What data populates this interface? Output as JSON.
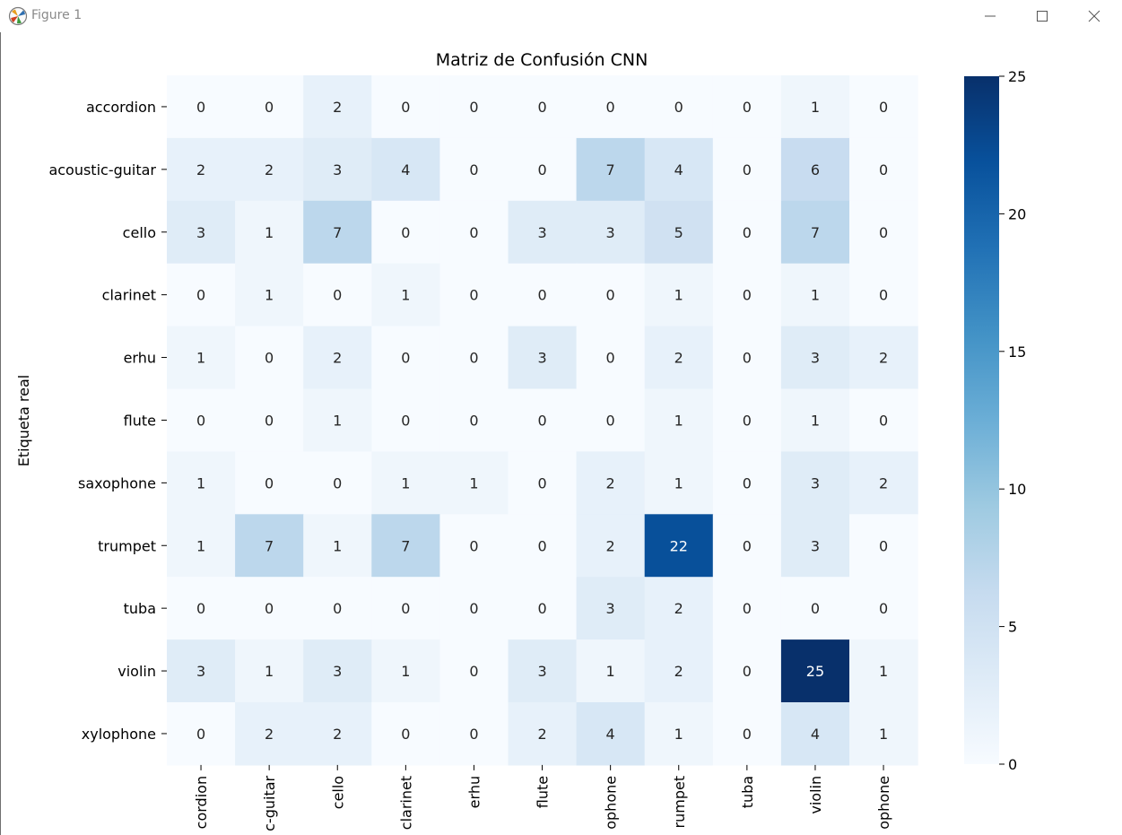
{
  "window": {
    "title": "Figure 1",
    "icon": "matplotlib-icon",
    "buttons": [
      "minimize-icon",
      "maximize-icon",
      "close-icon"
    ]
  },
  "chart_data": {
    "type": "heatmap",
    "title": "Matriz de Confusión CNN",
    "ylabel": "Etiqueta real",
    "xlabel": "",
    "row_labels": [
      "accordion",
      "acoustic-guitar",
      "cello",
      "clarinet",
      "erhu",
      "flute",
      "saxophone",
      "trumpet",
      "tuba",
      "violin",
      "xylophone"
    ],
    "col_labels": [
      "cordion",
      "c-guitar",
      "cello",
      "clarinet",
      "erhu",
      "flute",
      "ophone",
      "rumpet",
      "tuba",
      "violin",
      "ophone"
    ],
    "matrix": [
      [
        0,
        0,
        2,
        0,
        0,
        0,
        0,
        0,
        0,
        1,
        0
      ],
      [
        2,
        2,
        3,
        4,
        0,
        0,
        7,
        4,
        0,
        6,
        0
      ],
      [
        3,
        1,
        7,
        0,
        0,
        3,
        3,
        5,
        0,
        7,
        0
      ],
      [
        0,
        1,
        0,
        1,
        0,
        0,
        0,
        1,
        0,
        1,
        0
      ],
      [
        1,
        0,
        2,
        0,
        0,
        3,
        0,
        2,
        0,
        3,
        2
      ],
      [
        0,
        0,
        1,
        0,
        0,
        0,
        0,
        1,
        0,
        1,
        0
      ],
      [
        1,
        0,
        0,
        1,
        1,
        0,
        2,
        1,
        0,
        3,
        2
      ],
      [
        1,
        7,
        1,
        7,
        0,
        0,
        2,
        22,
        0,
        3,
        0
      ],
      [
        0,
        0,
        0,
        0,
        0,
        0,
        3,
        2,
        0,
        0,
        0
      ],
      [
        3,
        1,
        3,
        1,
        0,
        3,
        1,
        2,
        0,
        25,
        1
      ],
      [
        0,
        2,
        2,
        0,
        0,
        2,
        4,
        1,
        0,
        4,
        1
      ]
    ],
    "colormap": "Blues",
    "vmin": 0,
    "vmax": 25,
    "colorbar_ticks": [
      0,
      5,
      10,
      15,
      20,
      25
    ],
    "annot_dark_color": "#262626",
    "annot_light_color": "#ffffff",
    "legend_position": "right"
  }
}
